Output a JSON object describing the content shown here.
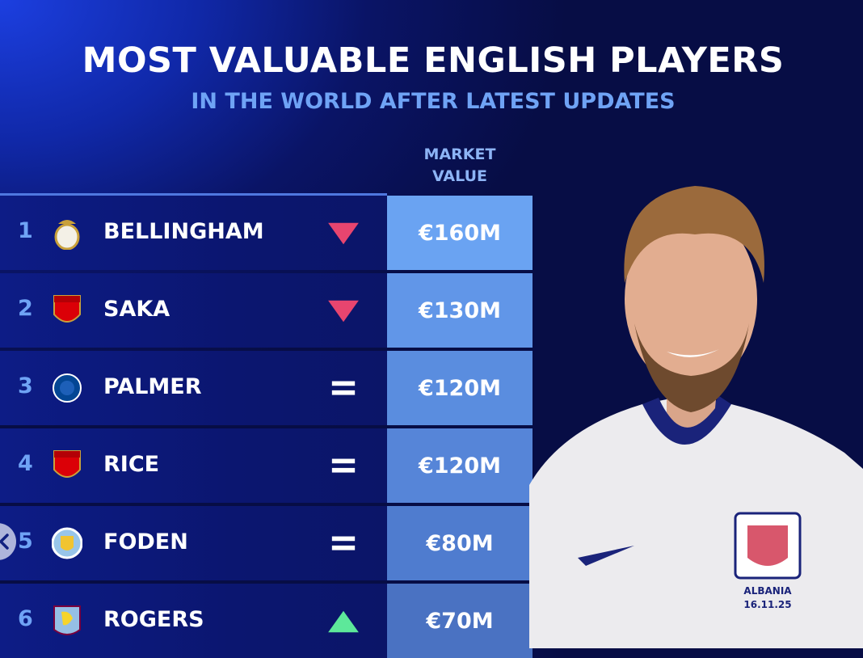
{
  "title": "MOST VALUABLE ENGLISH PLAYERS",
  "subtitle": "IN THE WORLD AFTER LATEST UPDATES",
  "column_header": {
    "line1": "MARKET",
    "line2": "VALUE"
  },
  "colors": {
    "down": "#e8456f",
    "up": "#5de89a",
    "equal": "#ffffff",
    "rank": "#6fa3f5"
  },
  "rows": [
    {
      "rank": "1",
      "name": "BELLINGHAM",
      "club_icon": "real-madrid-crest",
      "trend": "down",
      "value": "€160M",
      "bg": "#6aa3f2"
    },
    {
      "rank": "2",
      "name": "SAKA",
      "club_icon": "arsenal-crest",
      "trend": "down",
      "value": "€130M",
      "bg": "#6196e8"
    },
    {
      "rank": "3",
      "name": "PALMER",
      "club_icon": "chelsea-crest",
      "trend": "equal",
      "value": "€120M",
      "bg": "#5a8ddf"
    },
    {
      "rank": "4",
      "name": "RICE",
      "club_icon": "arsenal-crest",
      "trend": "equal",
      "value": "€120M",
      "bg": "#5685d8"
    },
    {
      "rank": "5",
      "name": "FODEN",
      "club_icon": "manchester-city-crest",
      "trend": "equal",
      "value": "€80M",
      "bg": "#4f7ccf"
    },
    {
      "rank": "6",
      "name": "ROGERS",
      "club_icon": "aston-villa-crest",
      "trend": "up",
      "value": "€70M",
      "bg": "#4a72c2"
    }
  ],
  "shirt_text": {
    "line1": "ALBANIA",
    "line2": "16.11.25"
  },
  "back_button_icon": "chevron-left-icon"
}
